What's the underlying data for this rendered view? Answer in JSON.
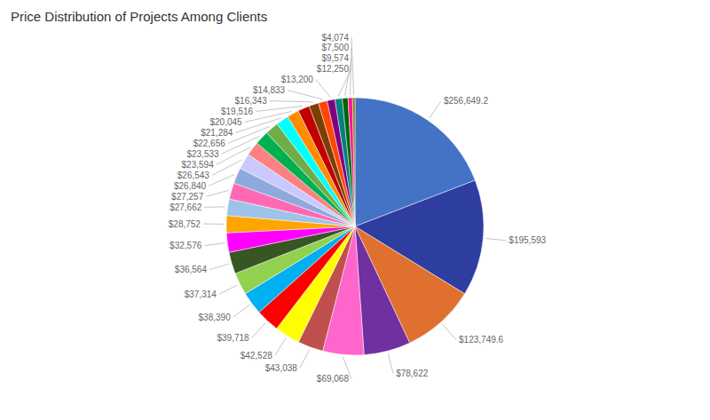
{
  "chart_data": {
    "type": "pie",
    "title": "Price Distribution of Projects Among Clients",
    "values": [
      256649.2,
      195593,
      123749.6,
      78622,
      69068,
      43038,
      42528,
      39718,
      38390,
      37314,
      36564,
      32576,
      28752,
      27662,
      27257,
      26840,
      26543,
      23594,
      23533,
      22656,
      21284,
      20045,
      19516,
      16343,
      14833,
      13200,
      12250,
      9574,
      7500,
      4074
    ],
    "value_labels": [
      "$256,649.2",
      "$195,593",
      "$123,749.6",
      "$78,622",
      "$69,068",
      "$43,038",
      "$42,528",
      "$39,718",
      "$38,390",
      "$37,314",
      "$36,564",
      "$32,576",
      "$28,752",
      "$27,662",
      "$27,257",
      "$26,840",
      "$26,543",
      "$23,594",
      "$23,533",
      "$22,656",
      "$21,284",
      "$20,045",
      "$19,516",
      "$16,343",
      "$14,833",
      "$13,200",
      "$12,250",
      "$9,574",
      "$7,500",
      "$4,074"
    ],
    "colors": [
      "#4472C4",
      "#2E3DA0",
      "#E07030",
      "#7030A0",
      "#FF66CC",
      "#C0504D",
      "#FFFF00",
      "#FF0000",
      "#00B0F0",
      "#92D050",
      "#375623",
      "#FF00FF",
      "#FFA500",
      "#9DC3E6",
      "#FF69B4",
      "#8EA9DB",
      "#C9C9FF",
      "#FF8080",
      "#00B050",
      "#70AD47",
      "#00FFFF",
      "#FF8C00",
      "#C00000",
      "#7B3F00",
      "#FF4500",
      "#800080",
      "#008080",
      "#006400",
      "#FF1493",
      "#808000"
    ]
  }
}
